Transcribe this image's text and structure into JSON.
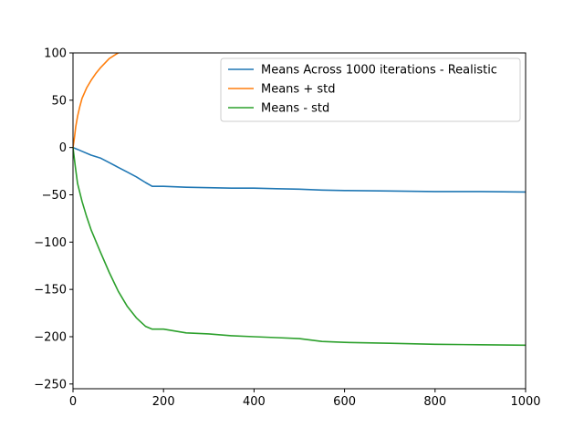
{
  "chart_data": {
    "type": "line",
    "title": "",
    "xlabel": "",
    "ylabel": "",
    "xlim": [
      0,
      1000
    ],
    "ylim": [
      -255,
      100
    ],
    "grid": false,
    "legend_position": "top-right",
    "x_ticks": [
      "0",
      "200",
      "400",
      "600",
      "800",
      "1000"
    ],
    "x_tick_values": [
      0,
      200,
      400,
      600,
      800,
      1000
    ],
    "y_ticks": [
      "100",
      "50",
      "0",
      "−50",
      "−100",
      "−150",
      "−200",
      "−250"
    ],
    "y_tick_values": [
      100,
      50,
      0,
      -50,
      -100,
      -150,
      -200,
      -250
    ],
    "series": [
      {
        "name": "Means Across 1000 iterations - Realistic",
        "color": "#1f77b4",
        "x": [
          0,
          10,
          20,
          40,
          60,
          80,
          100,
          120,
          140,
          160,
          175,
          200,
          250,
          300,
          350,
          400,
          450,
          500,
          550,
          600,
          700,
          800,
          900,
          1000
        ],
        "y": [
          0,
          -2,
          -4,
          -8,
          -11,
          -16,
          -21,
          -26,
          -31,
          -37,
          -41,
          -41,
          -42,
          -42.5,
          -43,
          -43,
          -43.5,
          -44,
          -45,
          -45.5,
          -46,
          -46.5,
          -46.5,
          -47
        ]
      },
      {
        "name": "Means + std",
        "color": "#ff7f0e",
        "x": [
          0,
          3,
          6,
          10,
          15,
          20,
          30,
          40,
          50,
          60,
          70,
          80,
          90,
          100
        ],
        "y": [
          0,
          10,
          22,
          33,
          43,
          52,
          63,
          71,
          78,
          84,
          89,
          94,
          97,
          100
        ]
      },
      {
        "name": "Means - std",
        "color": "#2ca02c",
        "x": [
          0,
          5,
          10,
          20,
          30,
          40,
          60,
          80,
          100,
          120,
          140,
          160,
          175,
          200,
          250,
          300,
          350,
          400,
          450,
          500,
          550,
          600,
          700,
          800,
          900,
          1000
        ],
        "y": [
          0,
          -20,
          -38,
          -57,
          -73,
          -87,
          -110,
          -132,
          -152,
          -168,
          -180,
          -189,
          -192,
          -192,
          -196,
          -197,
          -199,
          -200,
          -201,
          -202,
          -205,
          -206,
          -207,
          -208,
          -208.5,
          -209
        ]
      }
    ]
  }
}
